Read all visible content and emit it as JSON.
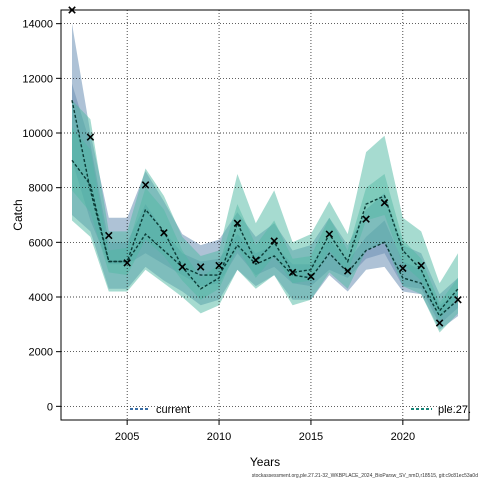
{
  "chart_data": {
    "type": "line",
    "xlabel": "Years",
    "ylabel": "Catch",
    "xlim": [
      2001.4,
      2023.6
    ],
    "ylim": [
      -500,
      14500
    ],
    "x_ticks": [
      2005,
      2010,
      2015,
      2020
    ],
    "y_ticks": [
      0,
      2000,
      4000,
      6000,
      8000,
      10000,
      12000,
      14000
    ],
    "grid": true,
    "years": [
      2002,
      2003,
      2004,
      2005,
      2006,
      2007,
      2008,
      2009,
      2010,
      2011,
      2012,
      2013,
      2014,
      2015,
      2016,
      2017,
      2018,
      2019,
      2020,
      2021,
      2022,
      2023
    ],
    "series": [
      {
        "name": "current",
        "color": "#3a6ea5",
        "fill": "#5d86ad",
        "median": [
          11200,
          7900,
          5300,
          5300,
          6300,
          5700,
          5100,
          4800,
          4800,
          5900,
          5200,
          5500,
          4800,
          4700,
          5600,
          4900,
          5700,
          6000,
          4700,
          4500,
          3300,
          3900
        ],
        "inner_low": [
          9000,
          6800,
          5200,
          5200,
          5600,
          5200,
          4800,
          4400,
          4500,
          5600,
          4800,
          5100,
          4500,
          4400,
          5000,
          4700,
          5400,
          5600,
          4400,
          4300,
          3000,
          3600
        ],
        "inner_high": [
          11800,
          9600,
          6000,
          6000,
          7400,
          6400,
          5600,
          5300,
          5400,
          6300,
          5600,
          5900,
          5200,
          5200,
          6100,
          5300,
          6200,
          6800,
          5300,
          5000,
          3700,
          4200
        ],
        "outer_low": [
          7000,
          6400,
          4300,
          4300,
          5100,
          4600,
          4200,
          3700,
          3900,
          5000,
          4400,
          4800,
          3900,
          3900,
          4800,
          4200,
          5000,
          5100,
          4200,
          4100,
          2800,
          3300
        ],
        "outer_high": [
          14000,
          10000,
          6900,
          6900,
          8600,
          7500,
          6300,
          5900,
          6100,
          7100,
          6200,
          6700,
          5700,
          5900,
          6900,
          5900,
          7200,
          7800,
          5900,
          5600,
          4100,
          4700
        ]
      },
      {
        "name": "ple.27.",
        "color": "#1a8478",
        "fill": "#4db7a2",
        "median": [
          9000,
          8100,
          5300,
          5300,
          7200,
          6400,
          5100,
          4300,
          4700,
          6700,
          5300,
          6000,
          4900,
          5000,
          6300,
          5300,
          7400,
          7700,
          5700,
          5000,
          3500,
          4300
        ],
        "inner_low": [
          7900,
          7100,
          4900,
          4800,
          6100,
          5500,
          4600,
          3900,
          4300,
          5800,
          4700,
          5500,
          4500,
          4600,
          5700,
          4900,
          6800,
          7000,
          5200,
          4600,
          3200,
          4000
        ],
        "inner_high": [
          10200,
          9400,
          5700,
          5800,
          8000,
          7200,
          5700,
          4700,
          5200,
          7400,
          5900,
          6800,
          5400,
          5500,
          6900,
          5700,
          8000,
          8500,
          6100,
          5400,
          3800,
          4700
        ],
        "outer_low": [
          6800,
          6200,
          4200,
          4200,
          5000,
          4500,
          4000,
          3400,
          3700,
          5000,
          4300,
          4800,
          3700,
          3900,
          4900,
          4300,
          5700,
          6000,
          4400,
          4100,
          2700,
          3400
        ],
        "outer_high": [
          11200,
          10500,
          6400,
          6400,
          8700,
          7700,
          6200,
          5500,
          5700,
          8500,
          6700,
          7900,
          6000,
          6300,
          7500,
          6300,
          9300,
          9900,
          6900,
          6400,
          4500,
          5600
        ]
      }
    ],
    "observed": {
      "name": "observed",
      "marker": "x",
      "x": [
        2002,
        2003,
        2004,
        2005,
        2006,
        2007,
        2008,
        2009,
        2010,
        2011,
        2012,
        2013,
        2014,
        2015,
        2016,
        2017,
        2018,
        2019,
        2020,
        2021,
        2022,
        2023
      ],
      "y": [
        14500,
        9850,
        6250,
        5250,
        8100,
        6350,
        5100,
        5100,
        5150,
        6700,
        5350,
        6050,
        4900,
        4750,
        6300,
        4950,
        6850,
        7450,
        5050,
        5150,
        3050,
        3900
      ]
    },
    "legend": [
      {
        "label": "current",
        "position": "bottom-left"
      },
      {
        "label": "ple.27.",
        "position": "bottom-right"
      }
    ],
    "footnote": "stockassessment.org,ple.27.21-32_WKBPLACE_2024_BioParsw_SV_nmD,r18515, git:c9c81ec53a0d"
  }
}
